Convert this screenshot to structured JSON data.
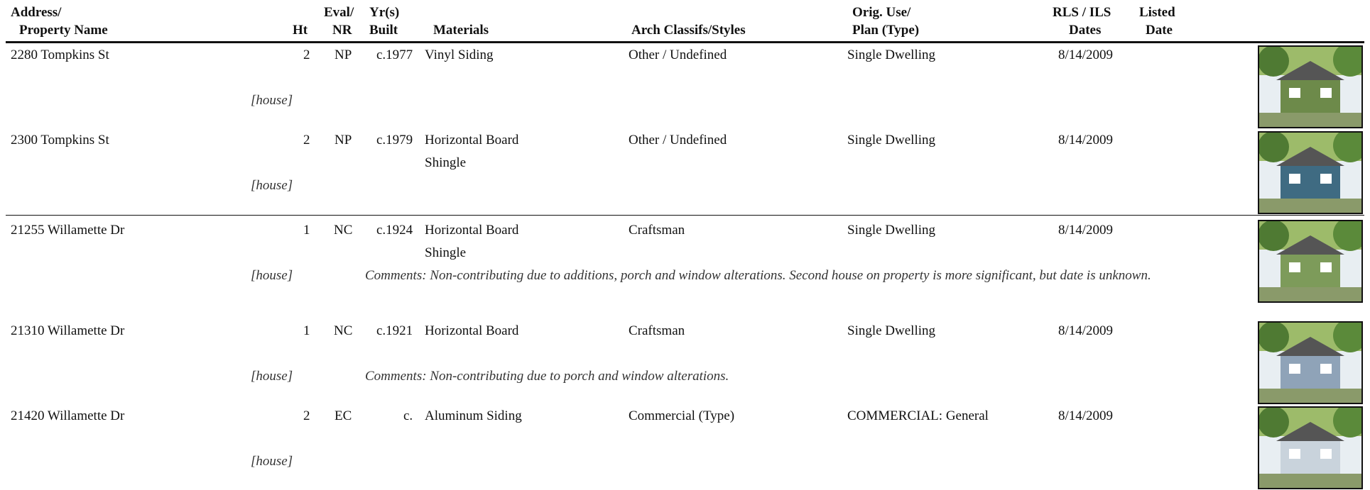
{
  "header": {
    "address": "Address/",
    "property_name": "Property Name",
    "ht": "Ht",
    "eval": "Eval/",
    "nr": "NR",
    "yrs": "Yr(s)",
    "built": "Built",
    "materials": "Materials",
    "arch": "Arch Classifs/Styles",
    "orig_use": "Orig. Use/",
    "plan": "Plan (Type)",
    "rls": "RLS / ILS",
    "dates": "Dates",
    "listed": "Listed",
    "date": "Date"
  },
  "rows": [
    {
      "address": "2280 Tompkins St",
      "ht": "2",
      "eval": "NP",
      "built": "c.1977",
      "materials": [
        "Vinyl Siding"
      ],
      "arch": "Other / Undefined",
      "use": "Single Dwelling",
      "dates": "8/14/2009",
      "name": "[house]"
    },
    {
      "address": "2300 Tompkins St",
      "ht": "2",
      "eval": "NP",
      "built": "c.1979",
      "materials": [
        "Horizontal Board",
        "Shingle"
      ],
      "arch": "Other / Undefined",
      "use": "Single Dwelling",
      "dates": "8/14/2009",
      "name": "[house]"
    },
    {
      "address": "21255 Willamette Dr",
      "ht": "1",
      "eval": "NC",
      "built": "c.1924",
      "materials": [
        "Horizontal Board",
        "Shingle"
      ],
      "arch": "Craftsman",
      "use": "Single Dwelling",
      "dates": "8/14/2009",
      "name": "[house]",
      "comments": "Comments: Non-contributing due to additions, porch and window alterations.  Second house on property is more significant, but date is unknown."
    },
    {
      "address": "21310 Willamette Dr",
      "ht": "1",
      "eval": "NC",
      "built": "c.1921",
      "materials": [
        "Horizontal Board"
      ],
      "arch": "Craftsman",
      "use": "Single Dwelling",
      "dates": "8/14/2009",
      "name": "[house]",
      "comments": "Comments: Non-contributing due to porch and window alterations."
    },
    {
      "address": "21420 Willamette Dr",
      "ht": "2",
      "eval": "EC",
      "built": "c.",
      "materials": [
        "Aluminum Siding"
      ],
      "arch": "Commercial (Type)",
      "use": "COMMERCIAL: General",
      "dates": "8/14/2009",
      "name": "[house]"
    }
  ]
}
